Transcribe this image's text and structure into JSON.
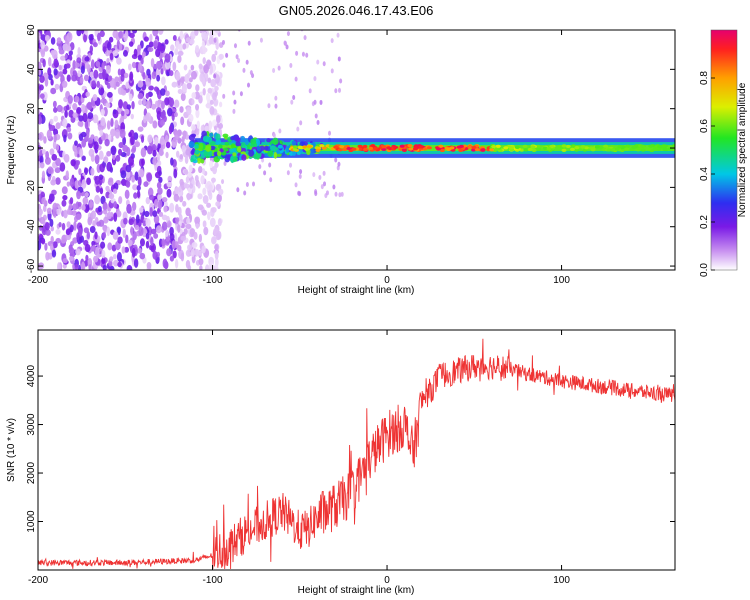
{
  "title": "GN05.2026.046.17.43.E06",
  "chart_data": [
    {
      "type": "heatmap",
      "title": "GN05.2026.046.17.43.E06",
      "xlabel": "Height of straight line (km)",
      "ylabel": "Frequency (Hz)",
      "xlim": [
        -200,
        165
      ],
      "ylim": [
        -62,
        60
      ],
      "xticks": [
        -200,
        -100,
        0,
        100
      ],
      "yticks": [
        60,
        40,
        20,
        0,
        -20,
        -40,
        -60
      ],
      "colorbar": {
        "label": "Normalized spectral amplitude",
        "range": [
          0.0,
          1.0
        ],
        "ticks": [
          0.0,
          0.2,
          0.4,
          0.6,
          0.8
        ],
        "colormap": "rainbow (magenta-blue-cyan-green-yellow-orange-red)"
      },
      "features": [
        {
          "name": "broadband noise",
          "x_range": [
            -200,
            -95
          ],
          "freq_range": [
            -62,
            60
          ],
          "amplitude": 0.05
        },
        {
          "name": "narrow carrier band",
          "x_range": [
            -110,
            165
          ],
          "freq_center": 0,
          "freq_halfwidth": 3,
          "peak_amplitude": 1.0,
          "peak_x_range": [
            -30,
            60
          ]
        }
      ]
    },
    {
      "type": "line",
      "xlabel": "Height of straight line (km)",
      "ylabel": "SNR (10 * v/v)",
      "xlim": [
        -200,
        165
      ],
      "ylim": [
        0,
        4950
      ],
      "xticks": [
        -200,
        -100,
        0,
        100
      ],
      "yticks": [
        1000,
        2000,
        3000,
        4000
      ],
      "series": [
        {
          "name": "SNR",
          "color": "#ee3333",
          "x": [
            -200,
            -150,
            -110,
            -100,
            -90,
            -80,
            -70,
            -60,
            -55,
            -50,
            -45,
            -40,
            -30,
            -20,
            -10,
            0,
            5,
            10,
            15,
            20,
            25,
            30,
            40,
            50,
            60,
            70,
            80,
            100,
            120,
            140,
            165
          ],
          "y": [
            150,
            150,
            200,
            300,
            500,
            800,
            1000,
            1200,
            1000,
            800,
            850,
            1100,
            1300,
            1600,
            2300,
            2800,
            2900,
            3000,
            2400,
            3500,
            3700,
            4000,
            4100,
            4200,
            4200,
            4150,
            4050,
            3900,
            3800,
            3700,
            3600
          ]
        }
      ]
    }
  ]
}
